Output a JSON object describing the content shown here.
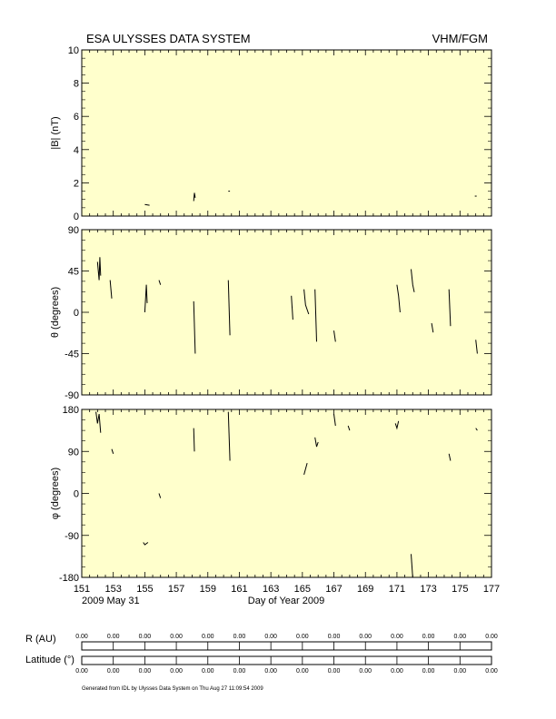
{
  "header": {
    "title": "ESA ULYSSES DATA SYSTEM",
    "instrument": "VHM/FGM"
  },
  "colors": {
    "panel_bg": "#ffffcc",
    "ink": "#000000"
  },
  "chart_data": {
    "type": "line",
    "x_axis": {
      "label": "Day of Year 2009",
      "range": [
        151,
        177
      ],
      "ticks": [
        "151",
        "153",
        "155",
        "157",
        "159",
        "161",
        "163",
        "165",
        "167",
        "169",
        "171",
        "173",
        "175",
        "177"
      ],
      "date_label": "2009 May 31"
    },
    "panels": [
      {
        "ylabel": "|B| (nT)",
        "ylim": [
          0,
          10
        ],
        "ticks": [
          "0",
          "2",
          "4",
          "6",
          "8",
          "10"
        ],
        "segments": [
          {
            "x": [
              155.0,
              155.3
            ],
            "y": [
              0.7,
              0.65
            ]
          },
          {
            "x": [
              158.1,
              158.15,
              158.2
            ],
            "y": [
              0.9,
              1.4,
              1.1
            ]
          },
          {
            "x": [
              160.3,
              160.4
            ],
            "y": [
              1.5,
              1.5
            ]
          },
          {
            "x": [
              176.0
            ],
            "y": [
              1.2
            ]
          }
        ]
      },
      {
        "ylabel": "θ (degrees)",
        "ylim": [
          -90,
          90
        ],
        "ticks": [
          "-90",
          "-45",
          "0",
          "45",
          "90"
        ],
        "segments": [
          {
            "x": [
              152.0,
              152.1,
              152.15,
              152.2
            ],
            "y": [
              55,
              35,
              60,
              40
            ]
          },
          {
            "x": [
              152.8,
              152.9
            ],
            "y": [
              35,
              15
            ]
          },
          {
            "x": [
              155.0,
              155.1,
              155.15
            ],
            "y": [
              0,
              30,
              10
            ]
          },
          {
            "x": [
              155.9,
              156.0
            ],
            "y": [
              35,
              30
            ]
          },
          {
            "x": [
              158.1,
              158.2
            ],
            "y": [
              12,
              -45
            ]
          },
          {
            "x": [
              160.3,
              160.4
            ],
            "y": [
              35,
              -25
            ]
          },
          {
            "x": [
              164.3,
              164.4
            ],
            "y": [
              18,
              -8
            ]
          },
          {
            "x": [
              165.1,
              165.2,
              165.4
            ],
            "y": [
              25,
              8,
              -2
            ]
          },
          {
            "x": [
              165.8,
              165.9
            ],
            "y": [
              25,
              -32
            ]
          },
          {
            "x": [
              167.0,
              167.1
            ],
            "y": [
              -20,
              -32
            ]
          },
          {
            "x": [
              171.0,
              171.1,
              171.2
            ],
            "y": [
              30,
              18,
              0
            ]
          },
          {
            "x": [
              171.9,
              172.0,
              172.1
            ],
            "y": [
              47,
              30,
              22
            ]
          },
          {
            "x": [
              173.2,
              173.3
            ],
            "y": [
              -12,
              -22
            ]
          },
          {
            "x": [
              174.3,
              174.4
            ],
            "y": [
              25,
              -15
            ]
          },
          {
            "x": [
              176.0,
              176.1
            ],
            "y": [
              -30,
              -45
            ]
          }
        ]
      },
      {
        "ylabel": "φ (degrees)",
        "ylim": [
          -180,
          180
        ],
        "ticks": [
          "-180",
          "-90",
          "0",
          "90",
          "180"
        ],
        "segments": [
          {
            "x": [
              151.9,
              152.0,
              152.1,
              152.2
            ],
            "y": [
              175,
              150,
              170,
              130
            ]
          },
          {
            "x": [
              152.9,
              153.0
            ],
            "y": [
              95,
              85
            ]
          },
          {
            "x": [
              154.9,
              155.0,
              155.2
            ],
            "y": [
              -105,
              -110,
              -105
            ]
          },
          {
            "x": [
              155.9,
              156.0
            ],
            "y": [
              0,
              -10
            ]
          },
          {
            "x": [
              158.1,
              158.15
            ],
            "y": [
              140,
              90
            ]
          },
          {
            "x": [
              160.3,
              160.4
            ],
            "y": [
              175,
              70
            ]
          },
          {
            "x": [
              165.1,
              165.3
            ],
            "y": [
              40,
              65
            ]
          },
          {
            "x": [
              165.8,
              165.9,
              166.0
            ],
            "y": [
              120,
              100,
              110
            ]
          },
          {
            "x": [
              167.0,
              167.1
            ],
            "y": [
              170,
              145
            ]
          },
          {
            "x": [
              167.9,
              168.0
            ],
            "y": [
              145,
              135
            ]
          },
          {
            "x": [
              170.9,
              171.0,
              171.1
            ],
            "y": [
              150,
              140,
              155
            ]
          },
          {
            "x": [
              171.9,
              172.0
            ],
            "y": [
              -130,
              -180
            ]
          },
          {
            "x": [
              174.3,
              174.4
            ],
            "y": [
              85,
              70
            ]
          },
          {
            "x": [
              176.0,
              176.1
            ],
            "y": [
              140,
              135
            ]
          }
        ]
      }
    ],
    "footer_rows": [
      {
        "label": "R (AU)",
        "values": [
          "0.00",
          "0.00",
          "0.00",
          "0.00",
          "0.00",
          "0.00",
          "0.00",
          "0.00",
          "0.00",
          "0.00",
          "0.00",
          "0.00",
          "0.00",
          "0.00"
        ]
      },
      {
        "label": "Latitude (°)",
        "values": [
          "0.00",
          "0.00",
          "0.00",
          "0.00",
          "0.00",
          "0.00",
          "0.00",
          "0.00",
          "0.00",
          "0.00",
          "0.00",
          "0.00",
          "0.00",
          "0.00"
        ]
      }
    ],
    "credit": "Generated from IDL by Ulysses Data System on Thu Aug 27 11:09:54 2009"
  }
}
